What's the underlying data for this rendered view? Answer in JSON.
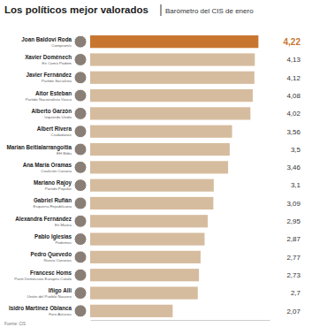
{
  "chart_data": {
    "type": "bar",
    "orientation": "horizontal",
    "title": "Los políticos mejor valorados",
    "subtitle": "Barómetro del CIS de enero",
    "source": "Fuente: CIS",
    "categories": [
      "Joan Baldoví Roda",
      "Xavier Domènech",
      "Javier Fernández",
      "Aitor Esteban",
      "Alberto Garzón",
      "Albert Rivera",
      "Marian Beitialarrangoitia",
      "Ana María Oramas",
      "Mariano Rajoy",
      "Gabriel Rufián",
      "Alexandra Fernández",
      "Pablo Iglesias",
      "Pedro Quevedo",
      "Francesc Homs",
      "Iñigo Alli",
      "Isidro Martínez Oblanca"
    ],
    "parties": [
      "Compromís",
      "En Comú Podem",
      "Partido Socialista",
      "Partido Nacionalista Vasco",
      "Izquierda Unida",
      "Ciudadanos",
      "EH Bildu",
      "Coalición Canaria",
      "Partido Popular",
      "Esquerra Republicana",
      "En Marea",
      "Podemos",
      "Nueva Canarias",
      "Partit Demòcrata Europeu Català",
      "Unión del Pueblo Navarro",
      "Foro Asturias"
    ],
    "values": [
      4.22,
      4.13,
      4.12,
      4.08,
      4.02,
      3.56,
      3.5,
      3.46,
      3.1,
      3.09,
      2.95,
      2.87,
      2.77,
      2.73,
      2.7,
      2.07
    ],
    "value_labels": [
      "4,22",
      "4,13",
      "4,12",
      "4,08",
      "4,02",
      "3,56",
      "3,5",
      "3,46",
      "3,1",
      "3,09",
      "2,95",
      "2,87",
      "2,77",
      "2,73",
      "2,7",
      "2,07"
    ],
    "color": "#d6bc9e",
    "colors": [
      "#c8762f",
      "#d6bc9e",
      "#d6bc9e",
      "#d6bc9e",
      "#d6bc9e",
      "#d6bc9e",
      "#d6bc9e",
      "#d6bc9e",
      "#d6bc9e",
      "#d6bc9e",
      "#d6bc9e",
      "#d6bc9e",
      "#d6bc9e",
      "#d6bc9e",
      "#d6bc9e",
      "#d6bc9e"
    ],
    "xlim": [
      0,
      4.5
    ],
    "data_labels": true,
    "tick_labels": false,
    "grid": false
  }
}
